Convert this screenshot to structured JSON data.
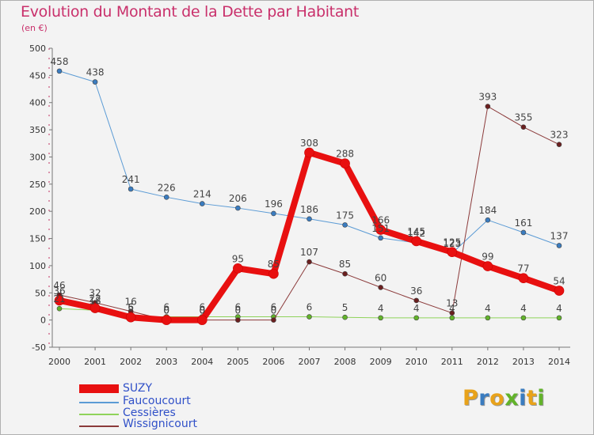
{
  "title": "Evolution du Montant de la Dette par Habitant",
  "unit": "(en €)",
  "logo": "Proxiti",
  "chart_data": {
    "type": "line",
    "title": "Evolution du Montant de la Dette par Habitant",
    "ylabel": "(en €)",
    "ylim": [
      -50,
      500
    ],
    "yticks": [
      -50,
      0,
      50,
      100,
      150,
      200,
      250,
      300,
      350,
      400,
      450,
      500
    ],
    "grid": false,
    "legend_position": "bottom-left",
    "categories": [
      "2000",
      "2001",
      "2002",
      "2003",
      "2004",
      "2005",
      "2006",
      "2007",
      "2008",
      "2009",
      "2010",
      "2011",
      "2012",
      "2013",
      "2014"
    ],
    "series": [
      {
        "name": "Faucoucourt",
        "color": "#5b9bd5",
        "point_color": "#3a7cc0",
        "width": 1,
        "values": [
          458,
          438,
          241,
          226,
          214,
          206,
          196,
          186,
          175,
          151,
          142,
          123,
          184,
          161,
          137
        ],
        "labels": [
          "458",
          "438",
          "241",
          "226",
          "214",
          "206",
          "196",
          "186",
          "175",
          "151",
          "142",
          "123",
          "184",
          "161",
          "137"
        ]
      },
      {
        "name": "Cessières",
        "color": "#8fd35a",
        "point_color": "#62b32a",
        "width": 1,
        "values": [
          21,
          18,
          6,
          6,
          6,
          6,
          6,
          6,
          5,
          4,
          4,
          4,
          4,
          4,
          4
        ],
        "labels": [
          "21",
          "18",
          "6",
          "6",
          "6",
          "6",
          "6",
          "6",
          "5",
          "4",
          "4",
          "4",
          "4",
          "4",
          "4"
        ]
      },
      {
        "name": "Wissignicourt",
        "color": "#8b3a3a",
        "point_color": "#6b1f1f",
        "width": 1,
        "values": [
          46,
          32,
          16,
          0,
          0,
          0,
          0,
          107,
          85,
          60,
          36,
          13,
          393,
          355,
          323
        ],
        "labels": [
          "46",
          "32",
          "16",
          "0",
          "0",
          "0",
          "0",
          "107",
          "85",
          "60",
          "36",
          "13",
          "393",
          "355",
          "323"
        ]
      },
      {
        "name": "SUZY",
        "color": "#e81010",
        "point_color": "#e81010",
        "width": 8,
        "values": [
          36,
          22,
          5,
          0,
          0,
          95,
          85,
          308,
          288,
          166,
          145,
          125,
          99,
          77,
          54
        ],
        "labels": [
          "36",
          "22",
          "5",
          "0",
          "0",
          "95",
          "85",
          "308",
          "288",
          "166",
          "145",
          "125",
          "99",
          "77",
          "54"
        ]
      }
    ]
  },
  "legend": [
    {
      "name": "SUZY",
      "color": "#e81010"
    },
    {
      "name": "Faucoucourt",
      "color": "#5b9bd5"
    },
    {
      "name": "Cessières",
      "color": "#8fd35a"
    },
    {
      "name": "Wissignicourt",
      "color": "#8b3a3a"
    }
  ]
}
